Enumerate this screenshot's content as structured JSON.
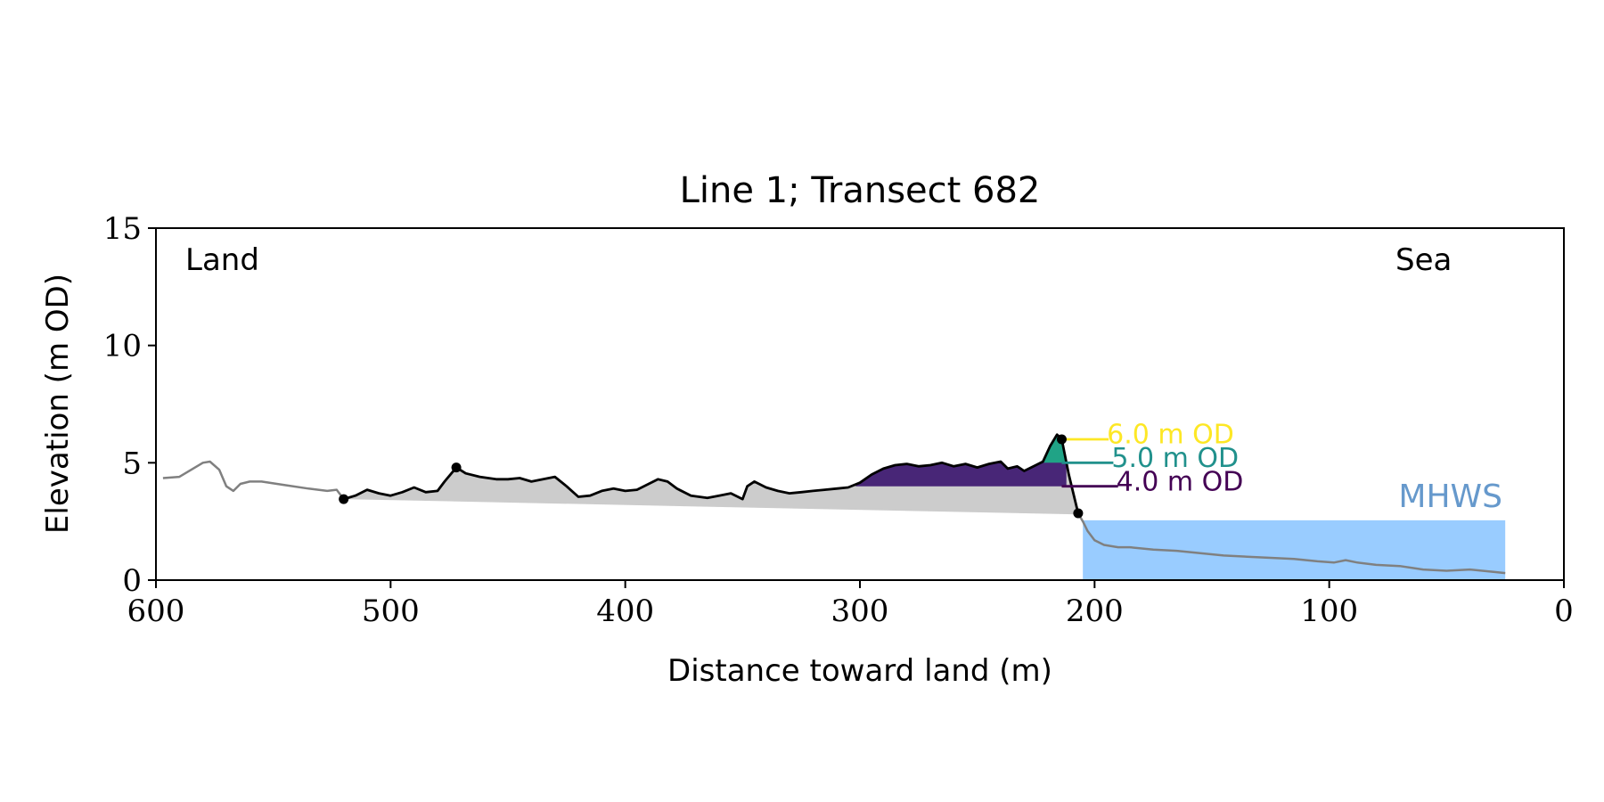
{
  "chart_data": {
    "type": "area",
    "title": "Line 1; Transect 682",
    "xlabel": "Distance toward land (m)",
    "ylabel": "Elevation (m OD)",
    "xlim": [
      600,
      0
    ],
    "ylim": [
      0,
      15
    ],
    "x_ticks": [
      600,
      500,
      400,
      300,
      200,
      100,
      0
    ],
    "y_ticks": [
      0,
      5,
      10,
      15
    ],
    "grid": false,
    "annotations": {
      "land": "Land",
      "sea": "Sea",
      "mhws": "MHWS"
    },
    "colors": {
      "profile_full": "#808080",
      "profile_dune": "#000000",
      "volume_fill": "#cccccc",
      "mhws_fill": "#99ccff",
      "mhws_text": "#6699cc",
      "level_4": "#440154",
      "level_5": "#21918c",
      "level_6": "#fde725",
      "fill_4": "#482677",
      "fill_5": "#20a386"
    },
    "mhws": {
      "elevation": 2.55,
      "x_start": 205,
      "x_end": 25
    },
    "levels": [
      {
        "label": "6.0 m OD",
        "elevation": 6.0,
        "color": "#fde725",
        "label_text_y": 6.2,
        "x_start": 214,
        "x_end": 194
      },
      {
        "label": "5.0 m OD",
        "elevation": 5.0,
        "color": "#21918c",
        "label_text_y": 5.2,
        "x_start": 214,
        "x_end": 192
      },
      {
        "label": "4.0 m OD",
        "elevation": 4.0,
        "color": "#440154",
        "label_text_y": 4.2,
        "x_start": 214,
        "x_end": 190
      }
    ],
    "level_fills": [
      {
        "elevation": 4.0,
        "x_from": 302,
        "x_to": 212,
        "color": "#482677"
      },
      {
        "elevation": 5.0,
        "x_from": 223,
        "x_to": 212,
        "color": "#20a386"
      }
    ],
    "volume_baseline": [
      [
        520,
        3.45
      ],
      [
        207,
        2.8
      ]
    ],
    "key_points": [
      [
        520,
        3.45
      ],
      [
        472,
        4.8
      ],
      [
        214,
        6.0
      ],
      [
        207,
        2.85
      ]
    ],
    "profile_full": [
      [
        597,
        4.35
      ],
      [
        590,
        4.4
      ],
      [
        585,
        4.7
      ],
      [
        580,
        5.0
      ],
      [
        577,
        5.05
      ],
      [
        573,
        4.7
      ],
      [
        570,
        4.0
      ],
      [
        567,
        3.8
      ],
      [
        564,
        4.1
      ],
      [
        560,
        4.2
      ],
      [
        555,
        4.2
      ],
      [
        545,
        4.05
      ],
      [
        535,
        3.9
      ],
      [
        527,
        3.8
      ],
      [
        523,
        3.85
      ],
      [
        520,
        3.45
      ],
      [
        205,
        2.5
      ],
      [
        203,
        2.1
      ],
      [
        200,
        1.7
      ],
      [
        196,
        1.5
      ],
      [
        190,
        1.4
      ],
      [
        185,
        1.4
      ],
      [
        175,
        1.3
      ],
      [
        165,
        1.25
      ],
      [
        155,
        1.15
      ],
      [
        145,
        1.05
      ],
      [
        135,
        1.0
      ],
      [
        125,
        0.95
      ],
      [
        115,
        0.9
      ],
      [
        105,
        0.8
      ],
      [
        98,
        0.75
      ],
      [
        93,
        0.85
      ],
      [
        88,
        0.75
      ],
      [
        80,
        0.65
      ],
      [
        70,
        0.6
      ],
      [
        60,
        0.45
      ],
      [
        50,
        0.4
      ],
      [
        40,
        0.45
      ],
      [
        30,
        0.35
      ],
      [
        25,
        0.3
      ]
    ],
    "profile_dune": [
      [
        520,
        3.45
      ],
      [
        515,
        3.6
      ],
      [
        510,
        3.85
      ],
      [
        505,
        3.7
      ],
      [
        500,
        3.6
      ],
      [
        495,
        3.75
      ],
      [
        490,
        3.95
      ],
      [
        485,
        3.75
      ],
      [
        480,
        3.8
      ],
      [
        477,
        4.2
      ],
      [
        472,
        4.8
      ],
      [
        468,
        4.55
      ],
      [
        462,
        4.4
      ],
      [
        455,
        4.3
      ],
      [
        450,
        4.3
      ],
      [
        445,
        4.35
      ],
      [
        440,
        4.2
      ],
      [
        435,
        4.3
      ],
      [
        430,
        4.4
      ],
      [
        425,
        4.0
      ],
      [
        420,
        3.55
      ],
      [
        415,
        3.6
      ],
      [
        410,
        3.8
      ],
      [
        405,
        3.9
      ],
      [
        400,
        3.8
      ],
      [
        395,
        3.85
      ],
      [
        390,
        4.1
      ],
      [
        386,
        4.3
      ],
      [
        382,
        4.2
      ],
      [
        378,
        3.9
      ],
      [
        372,
        3.6
      ],
      [
        365,
        3.5
      ],
      [
        360,
        3.6
      ],
      [
        355,
        3.7
      ],
      [
        350,
        3.45
      ],
      [
        348,
        4.0
      ],
      [
        345,
        4.2
      ],
      [
        340,
        3.95
      ],
      [
        335,
        3.8
      ],
      [
        330,
        3.7
      ],
      [
        325,
        3.75
      ],
      [
        320,
        3.8
      ],
      [
        315,
        3.85
      ],
      [
        310,
        3.9
      ],
      [
        305,
        3.95
      ],
      [
        300,
        4.15
      ],
      [
        295,
        4.5
      ],
      [
        290,
        4.75
      ],
      [
        285,
        4.9
      ],
      [
        280,
        4.95
      ],
      [
        275,
        4.85
      ],
      [
        270,
        4.9
      ],
      [
        265,
        5.0
      ],
      [
        260,
        4.85
      ],
      [
        255,
        4.95
      ],
      [
        250,
        4.8
      ],
      [
        245,
        4.95
      ],
      [
        240,
        5.05
      ],
      [
        237,
        4.75
      ],
      [
        233,
        4.85
      ],
      [
        230,
        4.65
      ],
      [
        226,
        4.85
      ],
      [
        222,
        5.05
      ],
      [
        219,
        5.7
      ],
      [
        216,
        6.2
      ],
      [
        214,
        6.0
      ],
      [
        211,
        4.5
      ],
      [
        207,
        2.85
      ]
    ]
  }
}
